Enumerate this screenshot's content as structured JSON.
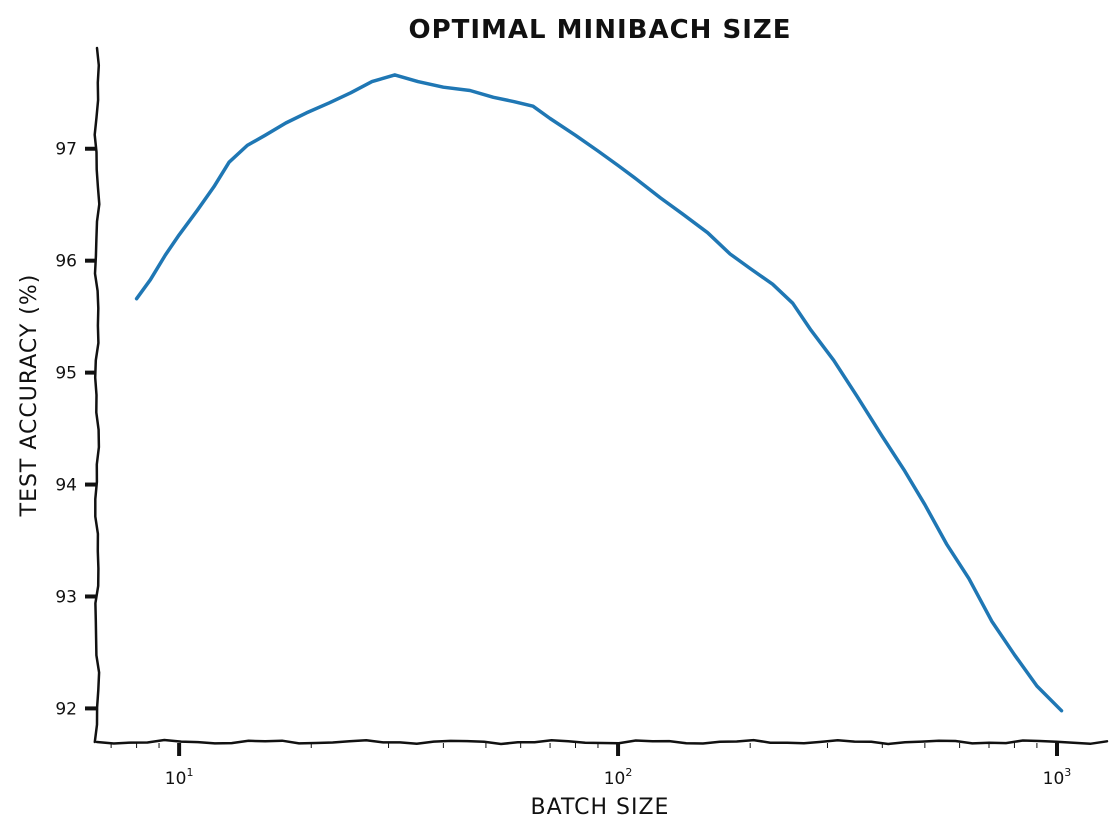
{
  "chart_data": {
    "type": "line",
    "style": "xkcd",
    "title": "OPTIMAL MINIBACH SIZE",
    "xlabel": "BATCH SIZE",
    "ylabel": "TEST ACCURACY (%)",
    "xscale": "log",
    "xlim": [
      6.5,
      1300
    ],
    "ylim": [
      91.7,
      97.9
    ],
    "xticks": [
      {
        "value": 10,
        "base": "10",
        "exp": "1"
      },
      {
        "value": 100,
        "base": "10",
        "exp": "2"
      },
      {
        "value": 1000,
        "base": "10",
        "exp": "3"
      }
    ],
    "yticks": [
      92,
      93,
      94,
      95,
      96,
      97
    ],
    "grid": false,
    "series": [
      {
        "color": "#1f77b4",
        "x": [
          8,
          8.6,
          9.3,
          10,
          11,
          12,
          13,
          14.3,
          15.7,
          17.5,
          19.5,
          22,
          24.6,
          27.5,
          31,
          35,
          40,
          46,
          52,
          58,
          64,
          70,
          80,
          90,
          100,
          110,
          125,
          140,
          160,
          180,
          200,
          225,
          250,
          275,
          310,
          350,
          400,
          450,
          500,
          560,
          630,
          710,
          800,
          900,
          1024
        ],
        "y": [
          95.66,
          95.83,
          96.05,
          96.23,
          96.45,
          96.66,
          96.88,
          97.03,
          97.12,
          97.23,
          97.32,
          97.41,
          97.5,
          97.6,
          97.66,
          97.6,
          97.55,
          97.52,
          97.46,
          97.42,
          97.38,
          97.27,
          97.12,
          96.98,
          96.85,
          96.73,
          96.56,
          96.42,
          96.25,
          96.06,
          95.93,
          95.79,
          95.62,
          95.38,
          95.11,
          94.79,
          94.43,
          94.12,
          93.82,
          93.47,
          93.16,
          92.78,
          92.48,
          92.2,
          91.98
        ]
      }
    ]
  }
}
